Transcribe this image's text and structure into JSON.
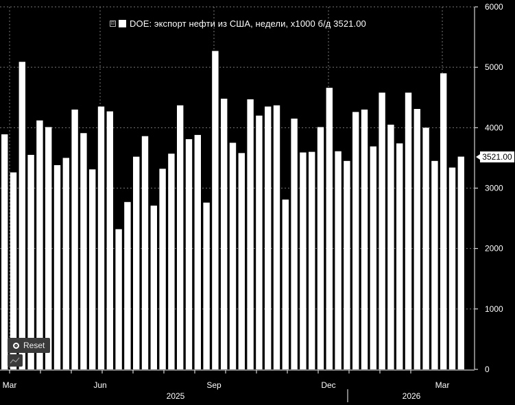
{
  "legend": {
    "toggle": "⊟",
    "label": "DOE: экспорт нефти из США, недели, x1000 б/д 3521.00"
  },
  "controls": {
    "reset_label": "Reset",
    "mini_icon": "chart-thumbnail-icon"
  },
  "last_value_label": "3521.00",
  "colors": {
    "background": "#000000",
    "bars": "#ffffff",
    "grid": "#888888"
  },
  "chart_data": {
    "type": "bar",
    "series": [
      {
        "name": "DOE: экспорт нефти из США, недели, x1000 б/д",
        "values": [
          3890,
          3260,
          5090,
          3550,
          4120,
          4010,
          3380,
          3500,
          4300,
          3910,
          3310,
          4350,
          4270,
          2320,
          2770,
          3520,
          3860,
          2710,
          3320,
          3570,
          4370,
          3810,
          3880,
          2760,
          5270,
          4480,
          3750,
          3580,
          4470,
          4200,
          4350,
          4370,
          2810,
          4150,
          3590,
          3600,
          4010,
          4660,
          3610,
          3450,
          4260,
          4300,
          3690,
          4580,
          4050,
          3740,
          4580,
          4310,
          4000,
          3450,
          4900,
          3340,
          3521
        ]
      }
    ],
    "ylim": [
      0,
      6000
    ],
    "y_ticks": [
      "0",
      "1000",
      "2000",
      "3000",
      "4000",
      "5000",
      "6000"
    ],
    "x_ticks": [
      "Mar",
      "Jun",
      "Sep",
      "Dec",
      "Mar"
    ],
    "x_year_labels": [
      "2025",
      "2026"
    ],
    "grid": true,
    "last_value": 3521.0
  }
}
